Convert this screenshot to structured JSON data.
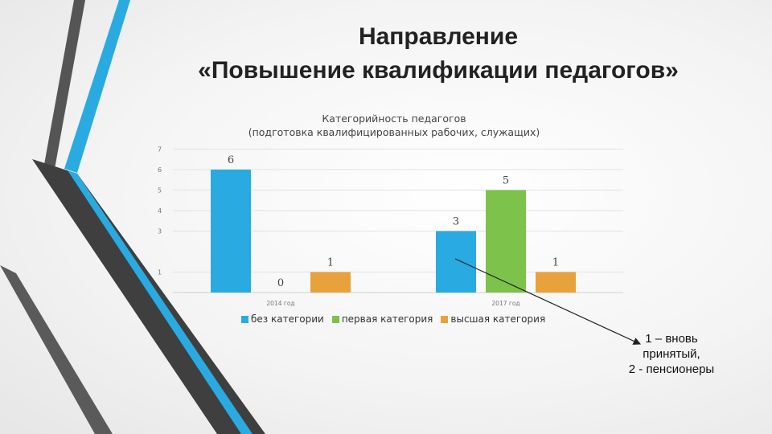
{
  "slide": {
    "title_line1": "Направление",
    "title_line2": "«Повышение квалификации педагогов»"
  },
  "chart_data": {
    "type": "bar",
    "title": "Категорийность педагогов",
    "subtitle": "(подготовка квалифицированных рабочих, служащих)",
    "categories": [
      "2014 год",
      "2017 год"
    ],
    "y_ticks": [
      "1",
      "3",
      "4",
      "5",
      "6",
      "7"
    ],
    "ylim": [
      0,
      7
    ],
    "grid": true,
    "legend_position": "bottom",
    "series": [
      {
        "name": "без категории",
        "values": [
          6,
          3
        ],
        "labels": [
          "6",
          "3"
        ],
        "color": "#29abe2"
      },
      {
        "name": "первая категория",
        "values": [
          0,
          5
        ],
        "labels": [
          "0",
          "5"
        ],
        "color": "#7dc24a"
      },
      {
        "name": "высшая категория",
        "values": [
          1,
          1
        ],
        "labels": [
          "1",
          "1"
        ],
        "color": "#e8a23c"
      }
    ]
  },
  "note": {
    "line1": "1 – вновь",
    "line2": "принятый,",
    "line3": "2  - пенсионеры"
  },
  "colors": {
    "deco_dark": "#4a4a4a",
    "deco_blue": "#29abe2"
  }
}
